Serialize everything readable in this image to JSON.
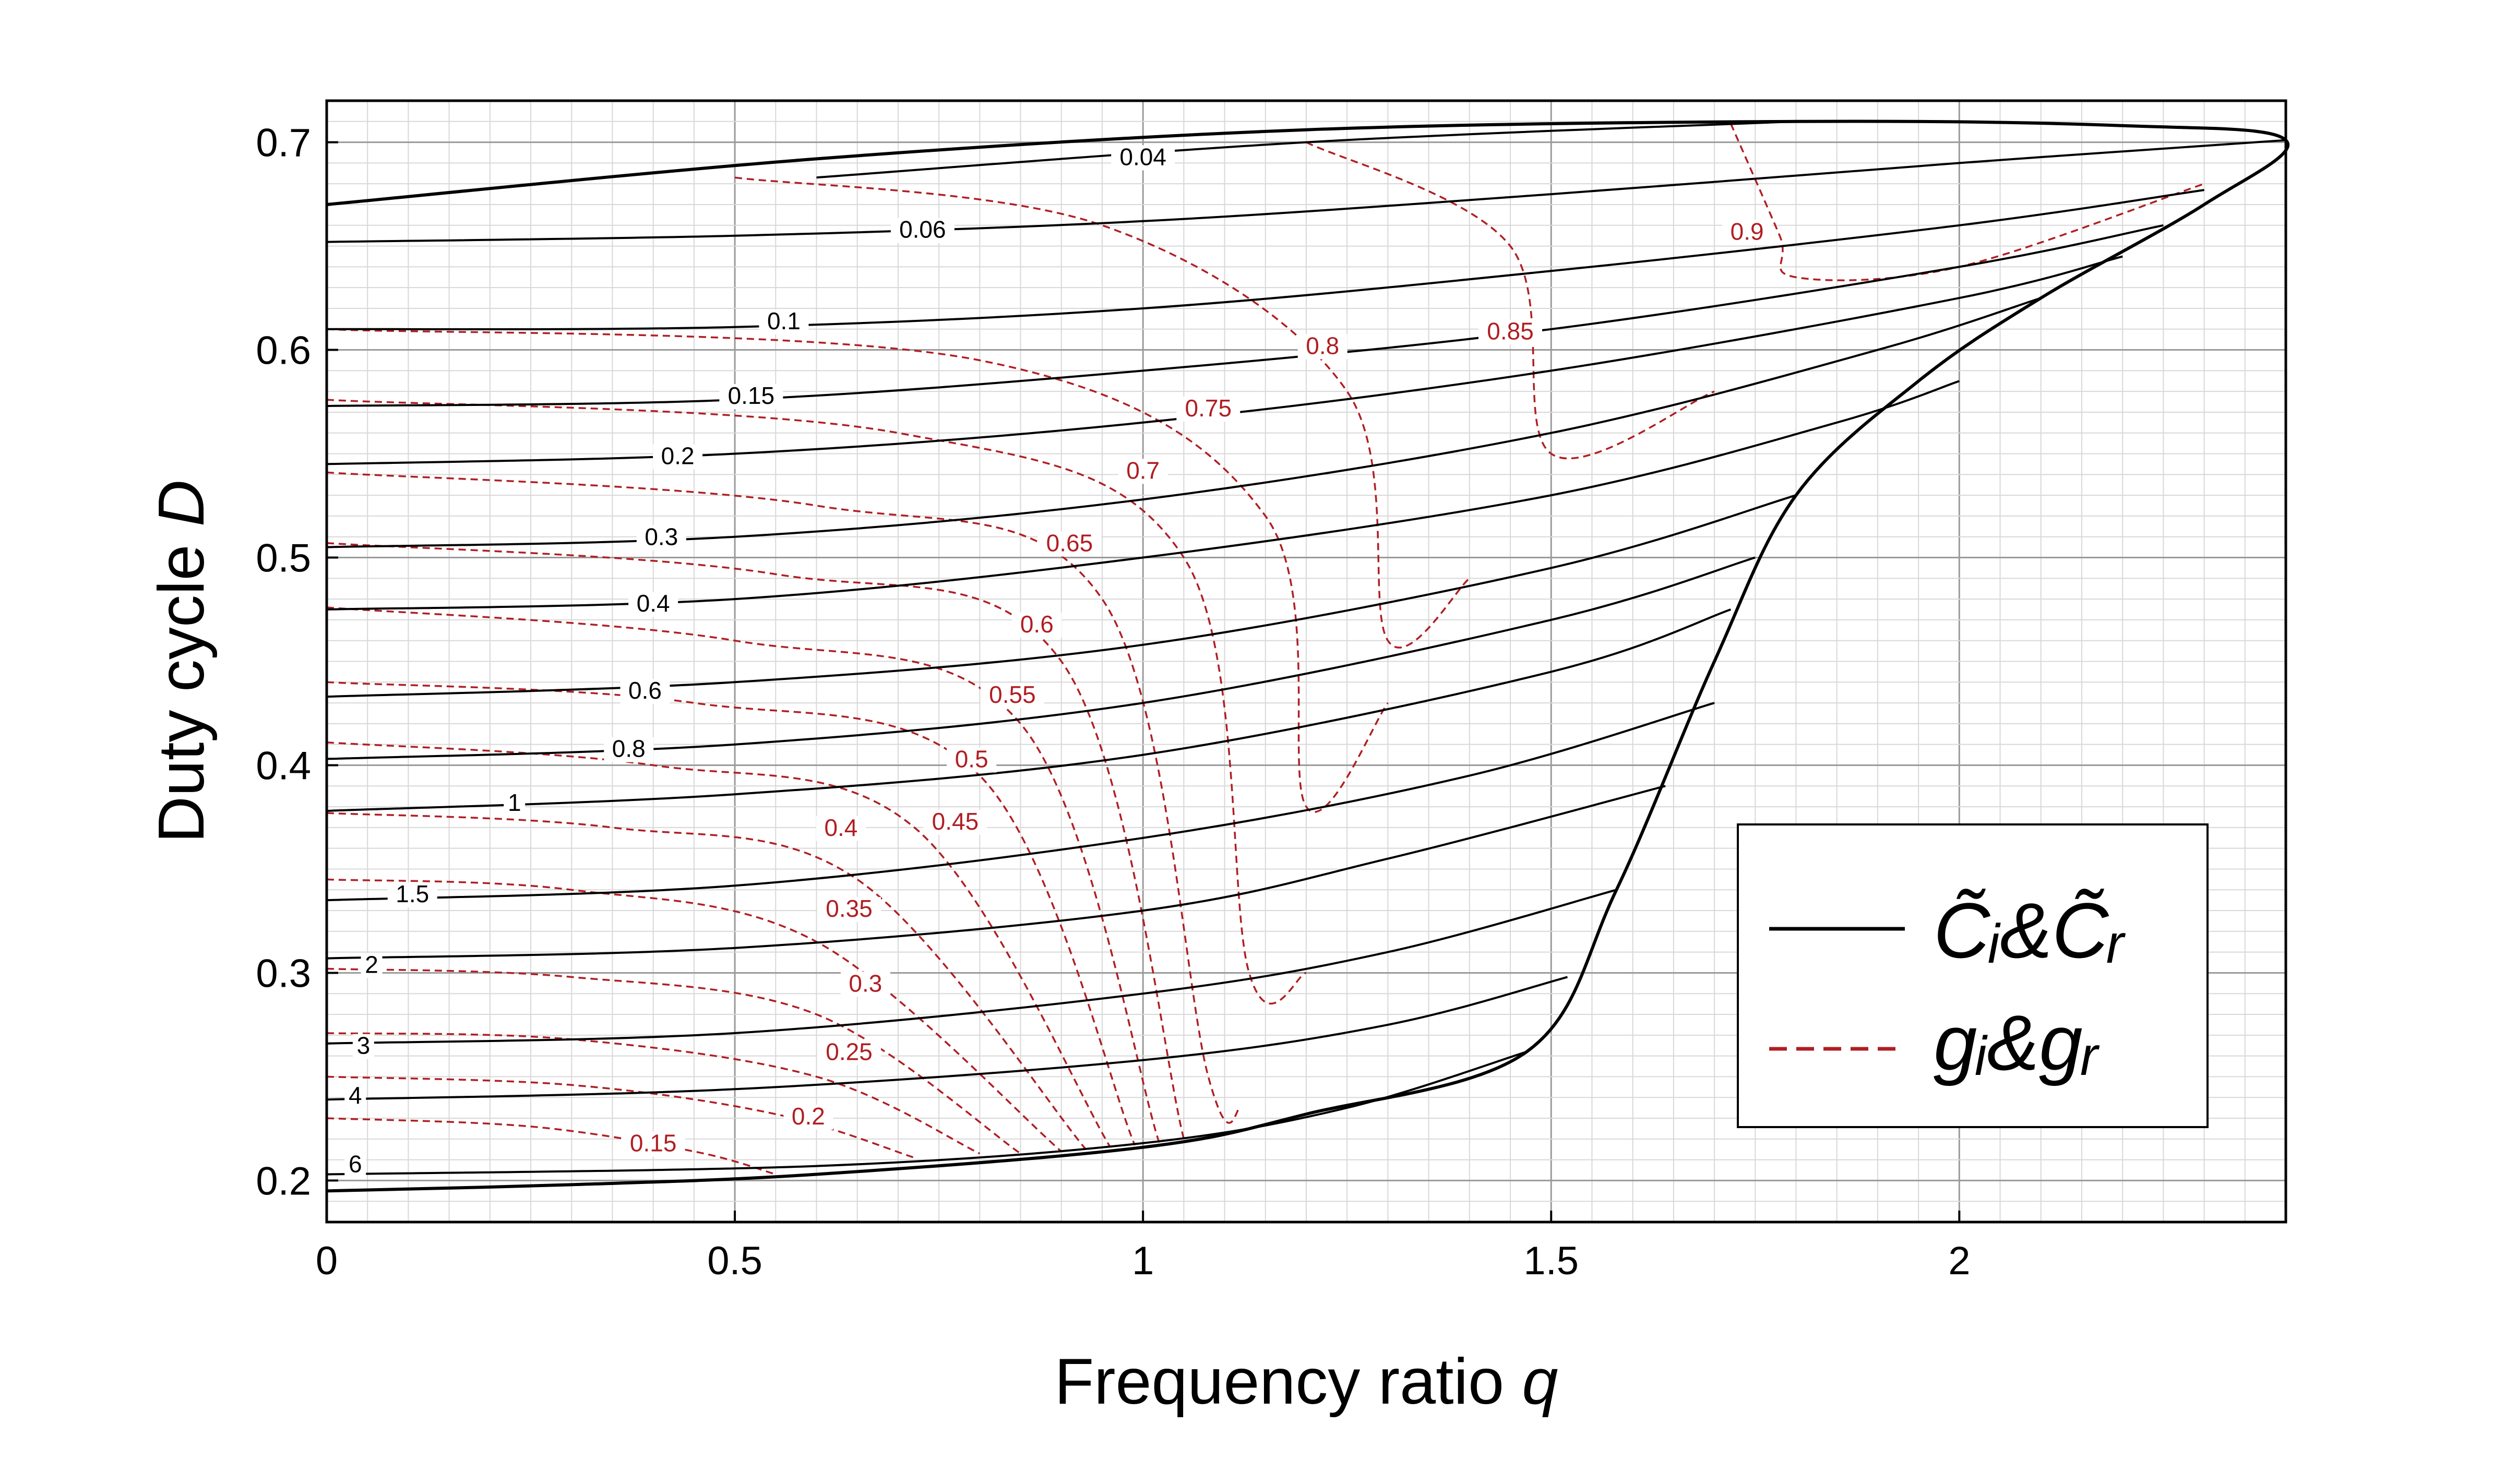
{
  "chart_data": {
    "type": "line",
    "xlabel": "Frequency ratio",
    "xlabel_var": "q",
    "ylabel": "Duty cycle",
    "ylabel_var": "D",
    "xlim": [
      0,
      2.4
    ],
    "ylim": [
      0.18,
      0.72
    ],
    "x_ticks": [
      "0",
      "0.5",
      "1",
      "1.5",
      "2"
    ],
    "y_ticks": [
      "0.2",
      "0.3",
      "0.4",
      "0.5",
      "0.6",
      "0.7"
    ],
    "grid": true,
    "legend_position": "bottom-right",
    "legend": [
      {
        "label": "C̃ᵢ&C̃ᵣ",
        "style": "solid",
        "color": "#000000"
      },
      {
        "label": "gᵢ&gᵣ",
        "style": "dashed",
        "color": "#b01e23"
      }
    ],
    "colors": {
      "c_series": "#000000",
      "g_series": "#b01e23",
      "grid_minor": "#d8d8d8",
      "grid_major": "#9a9a9a"
    },
    "boundary": {
      "name": "region boundary",
      "points": [
        [
          0,
          0.67
        ],
        [
          0.6,
          0.692
        ],
        [
          1.2,
          0.706
        ],
        [
          1.8,
          0.71
        ],
        [
          2.2,
          0.708
        ],
        [
          2.4,
          0.701
        ],
        [
          2.3,
          0.67
        ],
        [
          2.1,
          0.625
        ],
        [
          1.95,
          0.585
        ],
        [
          1.8,
          0.53
        ],
        [
          1.7,
          0.45
        ],
        [
          1.58,
          0.34
        ],
        [
          1.47,
          0.262
        ],
        [
          1.2,
          0.232
        ],
        [
          1.0,
          0.216
        ],
        [
          0.6,
          0.203
        ],
        [
          0.3,
          0.198
        ],
        [
          0,
          0.195
        ]
      ]
    },
    "c_series": [
      {
        "label": "0.04",
        "label_at": [
          1.0,
          0.691
        ],
        "points": [
          [
            0.6,
            0.683
          ],
          [
            1.2,
            0.7
          ],
          [
            1.8,
            0.71
          ]
        ]
      },
      {
        "label": "0.06",
        "label_at": [
          0.73,
          0.656
        ],
        "points": [
          [
            0,
            0.652
          ],
          [
            0.5,
            0.655
          ],
          [
            1.0,
            0.662
          ],
          [
            1.5,
            0.675
          ],
          [
            2.0,
            0.69
          ],
          [
            2.4,
            0.701
          ]
        ]
      },
      {
        "label": "0.1",
        "label_at": [
          0.56,
          0.612
        ],
        "points": [
          [
            0,
            0.61
          ],
          [
            0.5,
            0.611
          ],
          [
            1.0,
            0.62
          ],
          [
            1.5,
            0.638
          ],
          [
            2.0,
            0.66
          ],
          [
            2.3,
            0.677
          ]
        ]
      },
      {
        "label": "0.15",
        "label_at": [
          0.52,
          0.576
        ],
        "points": [
          [
            0,
            0.573
          ],
          [
            0.5,
            0.576
          ],
          [
            1.0,
            0.59
          ],
          [
            1.5,
            0.61
          ],
          [
            2.0,
            0.64
          ],
          [
            2.25,
            0.66
          ]
        ]
      },
      {
        "label": "0.2",
        "label_at": [
          0.43,
          0.547
        ],
        "points": [
          [
            0,
            0.545
          ],
          [
            0.5,
            0.55
          ],
          [
            1.0,
            0.565
          ],
          [
            1.5,
            0.59
          ],
          [
            2.0,
            0.625
          ],
          [
            2.2,
            0.645
          ]
        ]
      },
      {
        "label": "0.3",
        "label_at": [
          0.41,
          0.508
        ],
        "points": [
          [
            0,
            0.505
          ],
          [
            0.5,
            0.51
          ],
          [
            1.0,
            0.528
          ],
          [
            1.5,
            0.56
          ],
          [
            1.9,
            0.6
          ],
          [
            2.1,
            0.625
          ]
        ]
      },
      {
        "label": "0.4",
        "label_at": [
          0.4,
          0.476
        ],
        "points": [
          [
            0,
            0.475
          ],
          [
            0.5,
            0.48
          ],
          [
            1.0,
            0.5
          ],
          [
            1.5,
            0.53
          ],
          [
            1.85,
            0.565
          ],
          [
            2.0,
            0.585
          ]
        ]
      },
      {
        "label": "0.6",
        "label_at": [
          0.39,
          0.434
        ],
        "points": [
          [
            0,
            0.433
          ],
          [
            0.5,
            0.44
          ],
          [
            1.0,
            0.458
          ],
          [
            1.5,
            0.495
          ],
          [
            1.8,
            0.53
          ]
        ]
      },
      {
        "label": "0.8",
        "label_at": [
          0.37,
          0.406
        ],
        "points": [
          [
            0,
            0.403
          ],
          [
            0.5,
            0.41
          ],
          [
            1.0,
            0.43
          ],
          [
            1.5,
            0.47
          ],
          [
            1.75,
            0.5
          ]
        ]
      },
      {
        "label": "1",
        "label_at": [
          0.23,
          0.38
        ],
        "points": [
          [
            0,
            0.378
          ],
          [
            0.5,
            0.386
          ],
          [
            1.0,
            0.405
          ],
          [
            1.5,
            0.445
          ],
          [
            1.72,
            0.475
          ]
        ]
      },
      {
        "label": "1.5",
        "label_at": [
          0.105,
          0.336
        ],
        "points": [
          [
            0,
            0.335
          ],
          [
            0.5,
            0.342
          ],
          [
            1.0,
            0.365
          ],
          [
            1.4,
            0.395
          ],
          [
            1.7,
            0.43
          ]
        ]
      },
      {
        "label": "2",
        "label_at": [
          0.055,
          0.302
        ],
        "points": [
          [
            0,
            0.307
          ],
          [
            0.5,
            0.312
          ],
          [
            1.0,
            0.33
          ],
          [
            1.3,
            0.355
          ],
          [
            1.64,
            0.39
          ]
        ]
      },
      {
        "label": "3",
        "label_at": [
          0.045,
          0.263
        ],
        "points": [
          [
            0,
            0.266
          ],
          [
            0.5,
            0.271
          ],
          [
            1.0,
            0.29
          ],
          [
            1.3,
            0.31
          ],
          [
            1.58,
            0.34
          ]
        ]
      },
      {
        "label": "4",
        "label_at": [
          0.035,
          0.239
        ],
        "points": [
          [
            0,
            0.239
          ],
          [
            0.5,
            0.244
          ],
          [
            1.0,
            0.258
          ],
          [
            1.3,
            0.275
          ],
          [
            1.52,
            0.298
          ]
        ]
      },
      {
        "label": "6",
        "label_at": [
          0.035,
          0.206
        ],
        "points": [
          [
            0,
            0.203
          ],
          [
            0.6,
            0.207
          ],
          [
            1.0,
            0.218
          ],
          [
            1.25,
            0.235
          ],
          [
            1.47,
            0.262
          ]
        ]
      }
    ],
    "g_series": [
      {
        "label": "0.15",
        "label_at": [
          0.4,
          0.216
        ],
        "points": [
          [
            0,
            0.23
          ],
          [
            0.25,
            0.226
          ],
          [
            0.45,
            0.214
          ],
          [
            0.55,
            0.203
          ]
        ]
      },
      {
        "label": "0.2",
        "label_at": [
          0.59,
          0.229
        ],
        "points": [
          [
            0,
            0.25
          ],
          [
            0.3,
            0.246
          ],
          [
            0.55,
            0.232
          ],
          [
            0.72,
            0.211
          ]
        ]
      },
      {
        "label": "0.25",
        "label_at": [
          0.64,
          0.26
        ],
        "points": [
          [
            0,
            0.271
          ],
          [
            0.3,
            0.268
          ],
          [
            0.6,
            0.25
          ],
          [
            0.8,
            0.213
          ]
        ]
      },
      {
        "label": "0.3",
        "label_at": [
          0.66,
          0.293
        ],
        "points": [
          [
            0,
            0.302
          ],
          [
            0.3,
            0.298
          ],
          [
            0.6,
            0.28
          ],
          [
            0.85,
            0.213
          ]
        ]
      },
      {
        "label": "0.35",
        "label_at": [
          0.64,
          0.329
        ],
        "points": [
          [
            0,
            0.345
          ],
          [
            0.3,
            0.34
          ],
          [
            0.6,
            0.315
          ],
          [
            0.9,
            0.214
          ]
        ]
      },
      {
        "label": "0.4",
        "label_at": [
          0.63,
          0.368
        ],
        "points": [
          [
            0,
            0.377
          ],
          [
            0.35,
            0.37
          ],
          [
            0.65,
            0.345
          ],
          [
            0.93,
            0.215
          ]
        ]
      },
      {
        "label": "0.45",
        "label_at": [
          0.77,
          0.371
        ],
        "points": [
          [
            0,
            0.411
          ],
          [
            0.4,
            0.4
          ],
          [
            0.72,
            0.37
          ],
          [
            0.96,
            0.216
          ]
        ]
      },
      {
        "label": "0.5",
        "label_at": [
          0.79,
          0.401
        ],
        "points": [
          [
            0,
            0.44
          ],
          [
            0.45,
            0.43
          ],
          [
            0.8,
            0.395
          ],
          [
            0.99,
            0.217
          ]
        ]
      },
      {
        "label": "0.55",
        "label_at": [
          0.84,
          0.432
        ],
        "points": [
          [
            0,
            0.476
          ],
          [
            0.5,
            0.46
          ],
          [
            0.85,
            0.42
          ],
          [
            1.02,
            0.218
          ]
        ]
      },
      {
        "label": "0.6",
        "label_at": [
          0.87,
          0.466
        ],
        "points": [
          [
            0,
            0.507
          ],
          [
            0.55,
            0.492
          ],
          [
            0.9,
            0.45
          ],
          [
            1.05,
            0.22
          ]
        ]
      },
      {
        "label": "0.65",
        "label_at": [
          0.91,
          0.505
        ],
        "points": [
          [
            0,
            0.541
          ],
          [
            0.6,
            0.525
          ],
          [
            0.95,
            0.48
          ],
          [
            1.08,
            0.25
          ],
          [
            1.12,
            0.235
          ]
        ]
      },
      {
        "label": "0.7",
        "label_at": [
          1.0,
          0.54
        ],
        "points": [
          [
            0,
            0.576
          ],
          [
            0.7,
            0.56
          ],
          [
            1.05,
            0.5
          ],
          [
            1.13,
            0.3
          ],
          [
            1.2,
            0.3
          ]
        ]
      },
      {
        "label": "0.75",
        "label_at": [
          1.08,
          0.57
        ],
        "points": [
          [
            0,
            0.61
          ],
          [
            0.8,
            0.595
          ],
          [
            1.15,
            0.52
          ],
          [
            1.2,
            0.38
          ],
          [
            1.3,
            0.43
          ]
        ]
      },
      {
        "label": "0.8",
        "label_at": [
          1.22,
          0.6
        ],
        "points": [
          [
            0.5,
            0.683
          ],
          [
            0.95,
            0.66
          ],
          [
            1.25,
            0.58
          ],
          [
            1.3,
            0.46
          ],
          [
            1.4,
            0.49
          ]
        ]
      },
      {
        "label": "0.85",
        "label_at": [
          1.45,
          0.607
        ],
        "points": [
          [
            1.2,
            0.7
          ],
          [
            1.45,
            0.65
          ],
          [
            1.5,
            0.55
          ],
          [
            1.7,
            0.58
          ]
        ]
      },
      {
        "label": "0.9",
        "label_at": [
          1.74,
          0.655
        ],
        "points": [
          [
            1.72,
            0.709
          ],
          [
            1.78,
            0.655
          ],
          [
            1.8,
            0.635
          ],
          [
            2.0,
            0.64
          ],
          [
            2.3,
            0.68
          ]
        ]
      }
    ]
  }
}
